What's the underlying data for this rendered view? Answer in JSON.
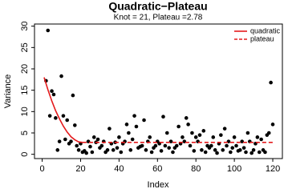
{
  "chart_data": {
    "type": "scatter",
    "title": "Quadratic−Plateau",
    "subtitle": "Knot = 21, Plateau =2.78",
    "x_label": "Index",
    "y_label": "Variance",
    "point_color": "#000000",
    "x": [
      2,
      3,
      4,
      5,
      6,
      7,
      8,
      9,
      10,
      11,
      12,
      13,
      14,
      15,
      16,
      17,
      18,
      19,
      20,
      21,
      22,
      23,
      24,
      25,
      26,
      27,
      28,
      29,
      30,
      31,
      32,
      33,
      34,
      35,
      36,
      37,
      38,
      39,
      40,
      41,
      42,
      43,
      44,
      45,
      46,
      47,
      48,
      49,
      50,
      51,
      52,
      53,
      54,
      55,
      56,
      57,
      58,
      59,
      60,
      61,
      62,
      63,
      64,
      65,
      66,
      67,
      68,
      69,
      70,
      71,
      72,
      73,
      74,
      75,
      76,
      77,
      78,
      79,
      80,
      81,
      82,
      83,
      84,
      85,
      86,
      87,
      88,
      89,
      90,
      91,
      92,
      93,
      94,
      95,
      96,
      97,
      98,
      99,
      100,
      101,
      102,
      103,
      104,
      105,
      106,
      107,
      108,
      109,
      110,
      111,
      112,
      113,
      114,
      115,
      116,
      117,
      118,
      119,
      120
    ],
    "values": [
      17.2,
      29,
      9,
      14.8,
      14,
      8.5,
      1,
      3,
      18.3,
      9,
      3.5,
      8,
      2.5,
      3,
      13.8,
      6.8,
      2,
      1,
      2.5,
      0.5,
      0.8,
      0.3,
      3,
      1.8,
      0.5,
      4,
      2.8,
      3.5,
      1.5,
      2,
      3,
      0.5,
      1,
      6,
      2.5,
      1,
      2.8,
      1.5,
      4,
      0.5,
      2.5,
      3,
      7,
      5,
      1,
      3.5,
      9,
      6.5,
      1.5,
      1.8,
      2,
      8,
      1,
      3,
      4,
      0.5,
      1.5,
      2,
      3,
      2.5,
      0.8,
      8.8,
      2,
      5,
      1.5,
      3,
      0.5,
      1.5,
      2,
      6.5,
      2.5,
      4,
      3,
      8.5,
      7,
      2,
      5,
      0.8,
      4,
      3,
      4.5,
      1,
      5.5,
      0.5,
      2,
      1.5,
      2,
      4,
      1,
      0.3,
      2.5,
      4.5,
      1,
      6,
      2,
      3,
      0.5,
      1.5,
      4,
      2,
      0.8,
      1,
      3,
      1.5,
      0.5,
      5,
      3,
      0.3,
      1,
      2.5,
      4,
      0.5,
      3.5,
      1,
      0.5,
      4.5,
      5,
      16.8,
      7
    ],
    "lines": [
      {
        "name": "quadratic",
        "color": "#e41a1c",
        "dashed": false,
        "x": [
          1,
          3,
          5,
          7,
          9,
          11,
          13,
          15,
          17,
          19,
          21
        ],
        "values": [
          18,
          15.1,
          12.5,
          10.2,
          8.3,
          6.6,
          5.2,
          4.1,
          3.4,
          2.9,
          2.78
        ]
      },
      {
        "name": "plateau",
        "color": "#e41a1c",
        "dashed": true,
        "x": [
          21,
          120
        ],
        "values": [
          2.78,
          2.78
        ]
      }
    ],
    "legend_position": "top-right",
    "xlim": [
      -4,
      125
    ],
    "ylim": [
      -1,
      30.5
    ],
    "xticks": [
      0,
      20,
      40,
      60,
      80,
      100,
      120
    ],
    "yticks": [
      0,
      5,
      10,
      15,
      20,
      25,
      30
    ]
  }
}
